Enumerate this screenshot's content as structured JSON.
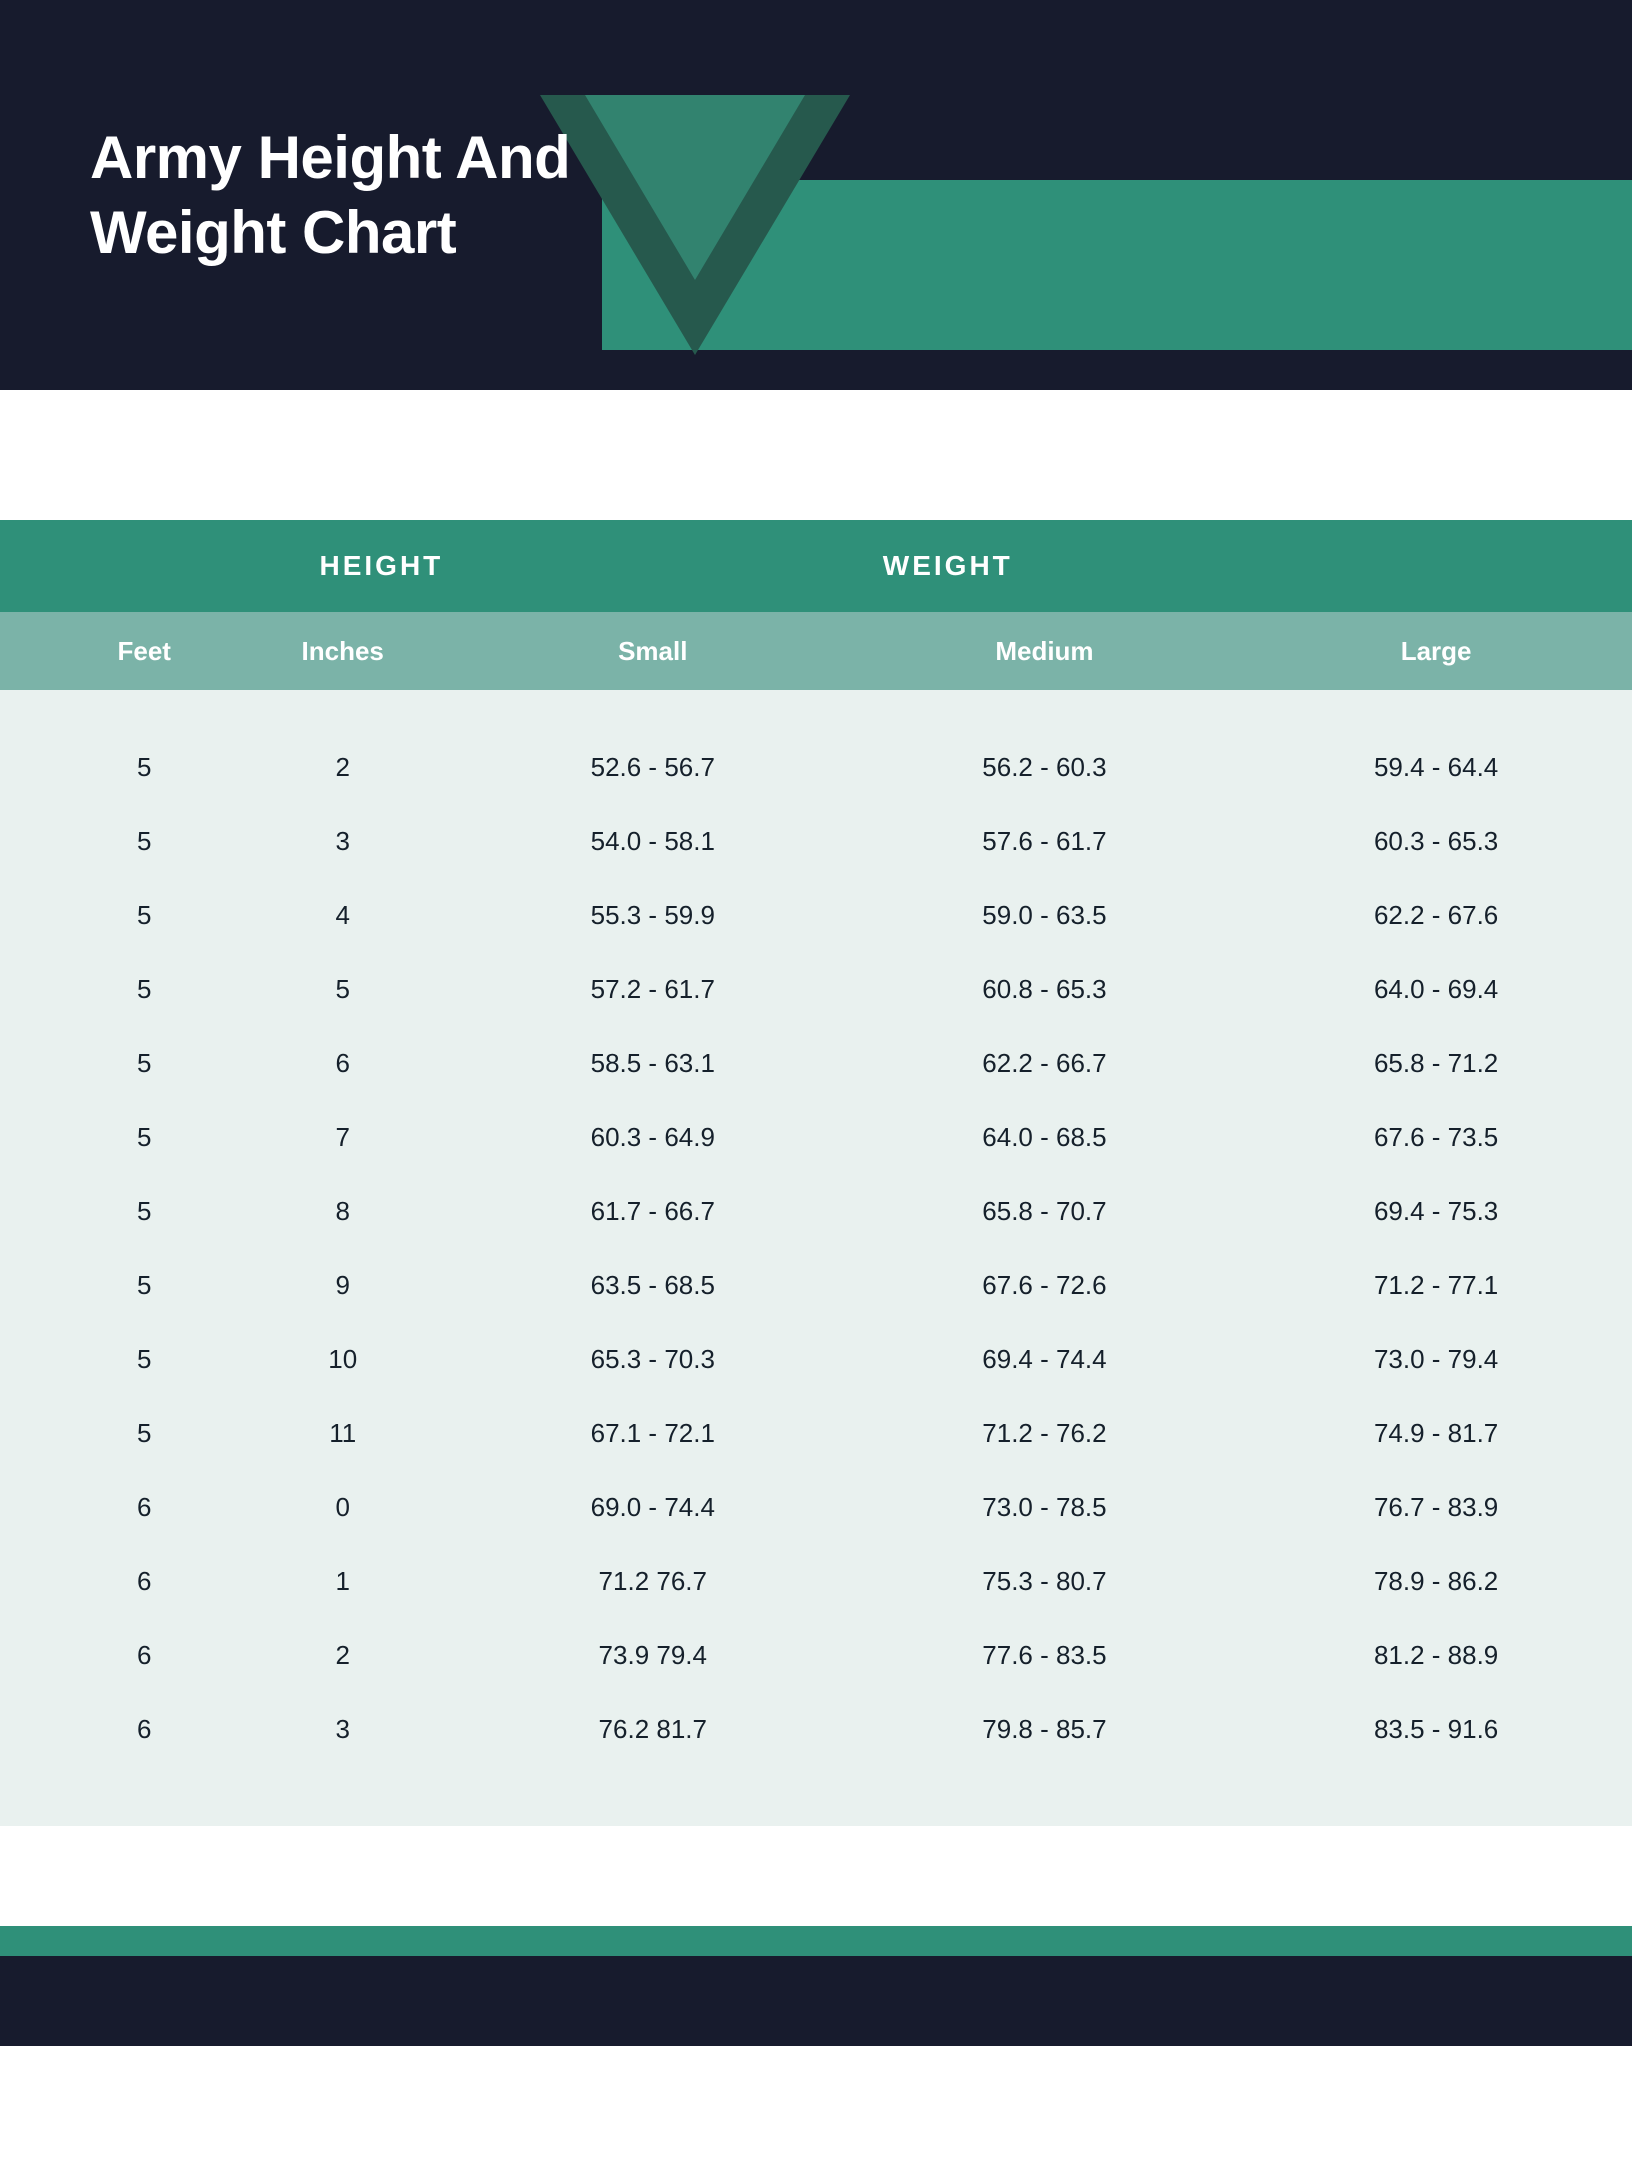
{
  "colors": {
    "dark_navy": "#171b2d",
    "teal_main": "#2f9079",
    "teal_sub": "#7bb3a8",
    "body_bg": "#e9f1ef",
    "text_dark": "#15202b",
    "triangle_outer": "#26594d",
    "triangle_inner": "#3da68c"
  },
  "title": "Army Height And Weight Chart",
  "table": {
    "type": "table",
    "top_headers": {
      "height": "HEIGHT",
      "weight": "WEIGHT"
    },
    "sub_headers": {
      "feet": "Feet",
      "inches": "Inches",
      "small": "Small",
      "medium": "Medium",
      "large": "Large"
    },
    "rows": [
      {
        "feet": "5",
        "inches": "2",
        "small": "52.6 - 56.7",
        "medium": "56.2 - 60.3",
        "large": "59.4 - 64.4"
      },
      {
        "feet": "5",
        "inches": "3",
        "small": "54.0 - 58.1",
        "medium": "57.6 - 61.7",
        "large": "60.3 - 65.3"
      },
      {
        "feet": "5",
        "inches": "4",
        "small": "55.3 - 59.9",
        "medium": "59.0 - 63.5",
        "large": "62.2 - 67.6"
      },
      {
        "feet": "5",
        "inches": "5",
        "small": "57.2 - 61.7",
        "medium": "60.8 - 65.3",
        "large": "64.0 - 69.4"
      },
      {
        "feet": "5",
        "inches": "6",
        "small": "58.5 - 63.1",
        "medium": "62.2 - 66.7",
        "large": "65.8 - 71.2"
      },
      {
        "feet": "5",
        "inches": "7",
        "small": "60.3 - 64.9",
        "medium": "64.0 - 68.5",
        "large": "67.6 - 73.5"
      },
      {
        "feet": "5",
        "inches": "8",
        "small": "61.7 - 66.7",
        "medium": "65.8 - 70.7",
        "large": "69.4 - 75.3"
      },
      {
        "feet": "5",
        "inches": "9",
        "small": "63.5 - 68.5",
        "medium": "67.6 - 72.6",
        "large": "71.2 - 77.1"
      },
      {
        "feet": "5",
        "inches": "10",
        "small": "65.3 - 70.3",
        "medium": "69.4 - 74.4",
        "large": "73.0 - 79.4"
      },
      {
        "feet": "5",
        "inches": "11",
        "small": "67.1 - 72.1",
        "medium": "71.2 - 76.2",
        "large": "74.9 - 81.7"
      },
      {
        "feet": "6",
        "inches": "0",
        "small": "69.0 - 74.4",
        "medium": "73.0 - 78.5",
        "large": "76.7 - 83.9"
      },
      {
        "feet": "6",
        "inches": "1",
        "small": "71.2 76.7",
        "medium": "75.3 - 80.7",
        "large": "78.9 - 86.2"
      },
      {
        "feet": "6",
        "inches": "2",
        "small": "73.9 79.4",
        "medium": "77.6 - 83.5",
        "large": "81.2 - 88.9"
      },
      {
        "feet": "6",
        "inches": "3",
        "small": "76.2 81.7",
        "medium": "79.8 - 85.7",
        "large": "83.5 - 91.6"
      }
    ]
  }
}
